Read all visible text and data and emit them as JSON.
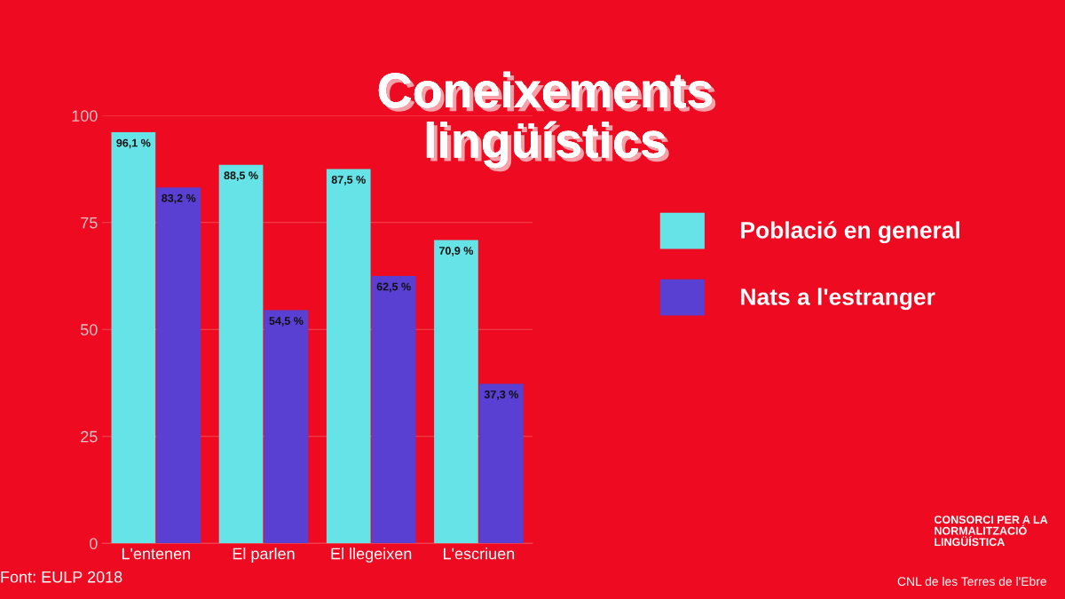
{
  "chart_data": {
    "type": "bar",
    "title": "Coneixements\nlingüístics",
    "categories": [
      "L'entenen",
      "El parlen",
      "El llegeixen",
      "L'escriuen"
    ],
    "series": [
      {
        "name": "Població en general",
        "color": "#66e3e6",
        "values": [
          96.1,
          88.5,
          87.5,
          70.9
        ],
        "value_labels": [
          "96,1 %",
          "88,5 %",
          "87,5 %",
          "70,9 %"
        ]
      },
      {
        "name": "Nats a l'estranger",
        "color": "#5a3fd3",
        "values": [
          83.2,
          54.5,
          62.5,
          37.3
        ],
        "value_labels": [
          "83,2 %",
          "54,5 %",
          "62,5 %",
          "37,3 %"
        ]
      }
    ],
    "ylim": [
      0,
      100
    ],
    "yticks": [
      0,
      25,
      50,
      75,
      100
    ],
    "grid": "y",
    "legend": "right",
    "annotations": [
      "Font: EULP 2018",
      "CONSORCI PER A LA\nNORMALITZACIÓ\nLINGÜÍSTICA",
      "CNL de les Terres de l'Ebre"
    ]
  }
}
